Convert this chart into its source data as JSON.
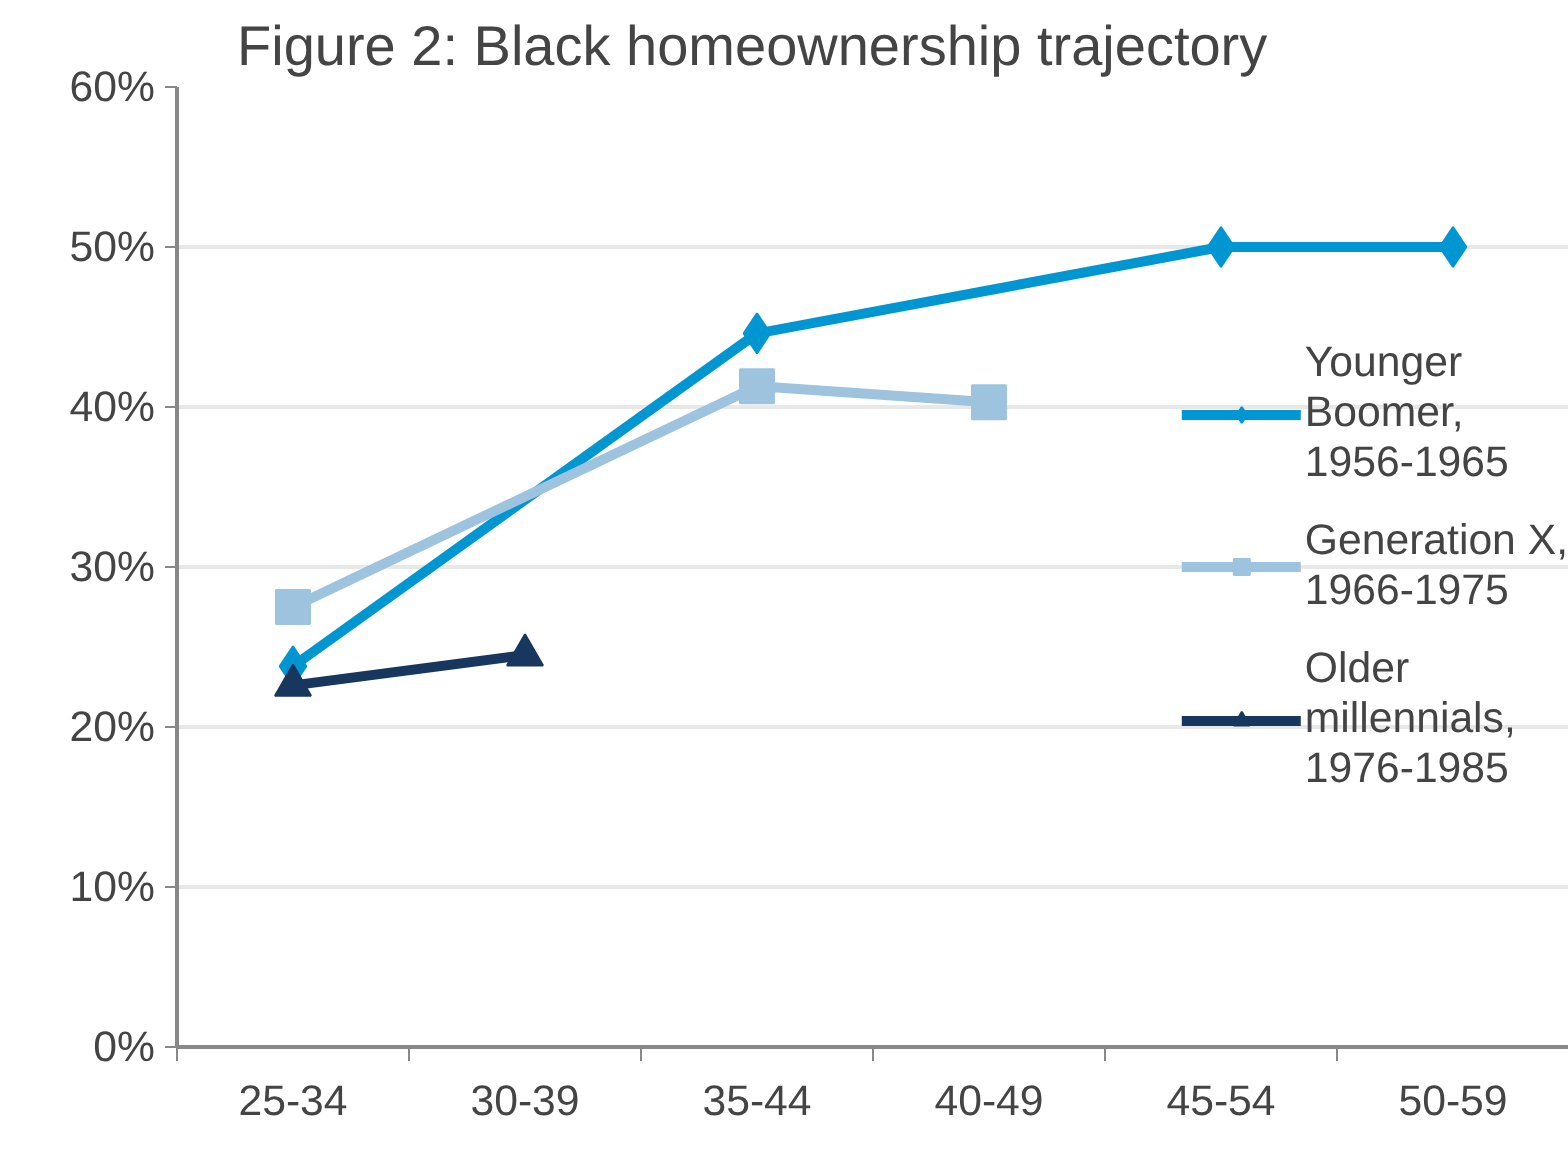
{
  "chart_data": {
    "type": "line",
    "title": "Figure 2: Black homeownership trajectory",
    "categories": [
      "25-34",
      "30-39",
      "35-44",
      "40-49",
      "45-54",
      "50-59"
    ],
    "series": [
      {
        "name": "Younger Boomer, 1956-1965",
        "color": "#0096d2",
        "marker": "diamond",
        "values": [
          23.8,
          null,
          44.6,
          null,
          50.0,
          50.0
        ]
      },
      {
        "name": "Generation X, 1966-1975",
        "color": "#9dc3de",
        "marker": "square",
        "values": [
          27.5,
          null,
          41.3,
          40.3,
          null,
          null
        ]
      },
      {
        "name": "Older millennials, 1976-1985",
        "color": "#17375e",
        "marker": "triangle",
        "values": [
          22.6,
          24.5,
          null,
          null,
          null,
          null
        ]
      }
    ],
    "ylim": [
      0,
      60
    ],
    "yticks": [
      {
        "value": 0,
        "label": "0%"
      },
      {
        "value": 10,
        "label": "10%"
      },
      {
        "value": 20,
        "label": "20%"
      },
      {
        "value": 30,
        "label": "30%"
      },
      {
        "value": 40,
        "label": "40%"
      },
      {
        "value": 50,
        "label": "50%"
      },
      {
        "value": 60,
        "label": "60%"
      }
    ],
    "grid": "y",
    "legend": "right",
    "line_style": "solid"
  }
}
